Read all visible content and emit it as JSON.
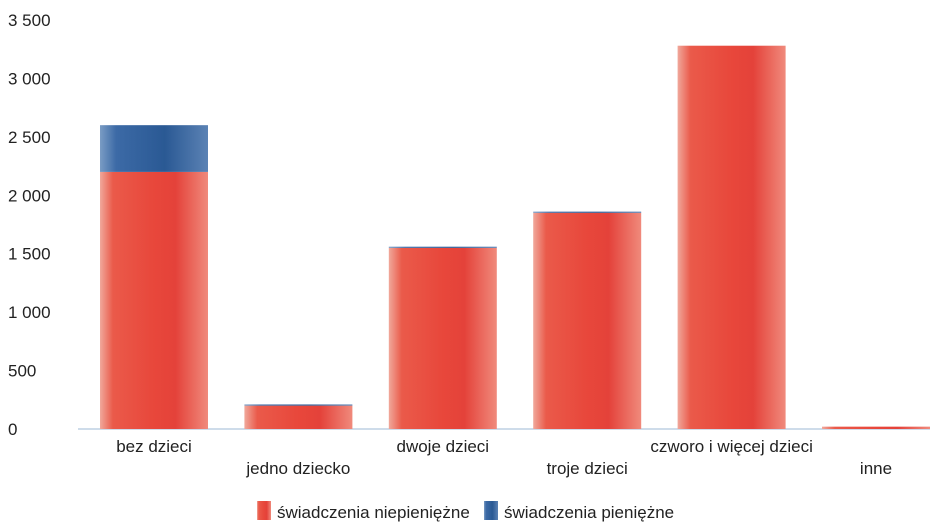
{
  "chart_data": {
    "type": "bar",
    "stacked": true,
    "categories": [
      "bez dzieci",
      "jedno dziecko",
      "dwoje dzieci",
      "troje dzieci",
      "czworo i więcej dzieci",
      "inne"
    ],
    "series": [
      {
        "name": "świadczenia niepieniężne",
        "values": [
          2200,
          200,
          1550,
          1850,
          3280,
          20
        ],
        "color": "#e8463a"
      },
      {
        "name": "świadczenia pieniężne",
        "values": [
          400,
          10,
          10,
          10,
          0,
          0
        ],
        "color": "#2a5a96"
      }
    ],
    "yticks": [
      "0",
      "500",
      "1 000",
      "1 500",
      "2 000",
      "2 500",
      "3 000",
      "3 500"
    ],
    "ylim": [
      0,
      3500
    ],
    "grid": false,
    "legend_position": "bottom"
  }
}
